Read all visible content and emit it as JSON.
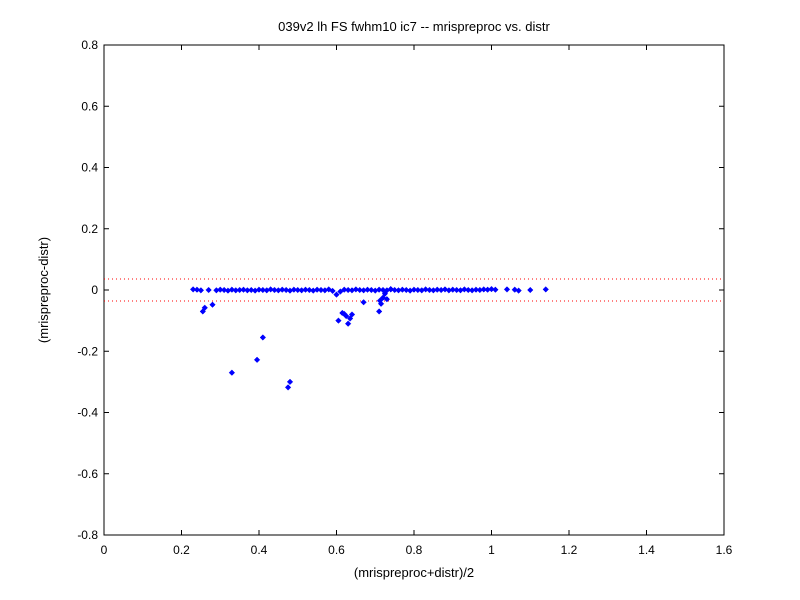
{
  "chart_data": {
    "type": "scatter",
    "title": "039v2 lh FS fwhm10 ic7 -- mrispreproc vs. distr",
    "xlabel": "(mrispreproc+distr)/2",
    "ylabel": "(mrispreproc-distr)",
    "xlim": [
      0,
      1.6
    ],
    "ylim": [
      -0.8,
      0.8
    ],
    "xticks": [
      "0",
      "0.2",
      "0.4",
      "0.6",
      "0.8",
      "1",
      "1.2",
      "1.4",
      "1.6"
    ],
    "yticks": [
      "0.8",
      "0.6",
      "0.4",
      "0.2",
      "0",
      "-0.2",
      "-0.4",
      "-0.6",
      "-0.8"
    ],
    "grid": false,
    "marker_color": "#0000ff",
    "reference_line_color": "#ff0000",
    "reference_lines_y": [
      0.036,
      -0.036
    ],
    "series": [
      {
        "x": [
          0.23,
          0.24,
          0.25,
          0.27,
          0.29,
          0.3,
          0.31,
          0.32,
          0.33,
          0.34,
          0.35,
          0.36,
          0.37,
          0.38,
          0.39,
          0.4,
          0.41,
          0.42,
          0.43,
          0.44,
          0.45,
          0.46,
          0.47,
          0.48,
          0.49,
          0.5,
          0.51,
          0.52,
          0.53,
          0.54,
          0.55,
          0.56,
          0.57,
          0.58,
          0.59,
          0.6,
          0.61,
          0.62,
          0.63,
          0.64,
          0.65,
          0.66,
          0.67,
          0.68,
          0.69,
          0.7,
          0.71,
          0.72,
          0.73,
          0.74,
          0.75,
          0.76,
          0.77,
          0.78,
          0.79,
          0.8,
          0.81,
          0.82,
          0.83,
          0.84,
          0.85,
          0.86,
          0.87,
          0.88,
          0.89,
          0.9,
          0.91,
          0.92,
          0.93,
          0.94,
          0.95,
          0.96,
          0.97,
          0.98,
          0.99,
          1.0,
          1.01,
          1.04,
          1.06,
          1.07,
          1.1,
          1.14,
          0.255,
          0.26,
          0.28,
          0.33,
          0.395,
          0.41,
          0.475,
          0.48,
          0.605,
          0.615,
          0.62,
          0.625,
          0.63,
          0.635,
          0.64,
          0.67,
          0.71,
          0.715,
          0.72,
          0.725,
          0.712,
          0.73,
          0.74
        ],
        "y": [
          0.002,
          0.001,
          -0.001,
          0.0,
          -0.001,
          0.001,
          0.0,
          -0.002,
          0.001,
          -0.001,
          0.0,
          0.001,
          -0.001,
          0.0,
          -0.002,
          0.001,
          0.0,
          -0.001,
          0.002,
          0.0,
          -0.001,
          0.001,
          0.0,
          -0.002,
          0.001,
          0.0,
          -0.001,
          0.001,
          0.0,
          -0.002,
          0.001,
          0.0,
          -0.001,
          0.002,
          -0.003,
          -0.015,
          -0.005,
          0.001,
          0.0,
          -0.001,
          0.002,
          0.0,
          -0.001,
          0.001,
          0.0,
          -0.002,
          0.001,
          0.0,
          -0.001,
          0.002,
          0.0,
          -0.001,
          0.001,
          0.0,
          -0.002,
          0.001,
          0.0,
          -0.001,
          0.002,
          0.0,
          -0.001,
          0.001,
          0.0,
          0.002,
          -0.001,
          0.001,
          0.0,
          -0.001,
          0.002,
          0.0,
          -0.001,
          0.001,
          0.0,
          0.002,
          0.001,
          0.003,
          0.001,
          0.002,
          0.001,
          -0.002,
          0.0,
          0.002,
          -0.07,
          -0.058,
          -0.048,
          -0.27,
          -0.228,
          -0.155,
          -0.318,
          -0.3,
          -0.1,
          -0.075,
          -0.078,
          -0.085,
          -0.11,
          -0.093,
          -0.08,
          -0.04,
          -0.07,
          -0.045,
          -0.025,
          -0.012,
          -0.035,
          -0.03,
          0.003
        ]
      }
    ]
  }
}
